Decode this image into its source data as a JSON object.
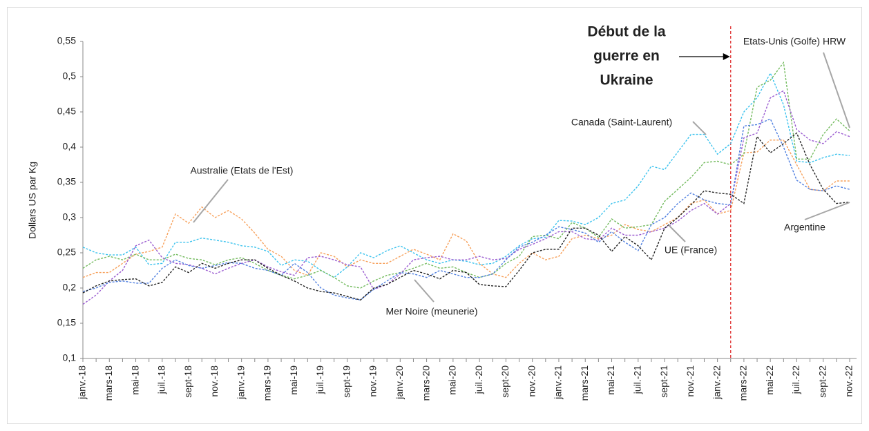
{
  "chart_data": {
    "type": "line",
    "y_label": "Dollars US par Kg",
    "event_text": [
      "Début de la",
      "guerre en",
      "Ukraine"
    ],
    "categories": [
      "janv.-18",
      null,
      "mars-18",
      null,
      "mai-18",
      null,
      "juil.-18",
      null,
      "sept-18",
      null,
      "nov.-18",
      null,
      "janv.-19",
      null,
      "mars-19",
      null,
      "mai-19",
      null,
      "juil.-19",
      null,
      "sept-19",
      null,
      "nov.-19",
      null,
      "janv.-20",
      null,
      "mars-20",
      null,
      "mai-20",
      null,
      "juil.-20",
      null,
      "sept-20",
      null,
      "nov.-20",
      null,
      "janv.-21",
      null,
      "mars-21",
      null,
      "mai-21",
      null,
      "juil.-21",
      null,
      "sept-21",
      null,
      "nov.-21",
      null,
      "janv.-22",
      null,
      "mars-22",
      null,
      "mai-22",
      null,
      "juil.-22",
      null,
      "sept-22",
      null,
      "nov.-22"
    ],
    "ylim": [
      0.1,
      0.55
    ],
    "yticks": [
      {
        "value": 0.1,
        "label": "0,1"
      },
      {
        "value": 0.15,
        "label": "0,15"
      },
      {
        "value": 0.2,
        "label": "0,2"
      },
      {
        "value": 0.25,
        "label": "0,25"
      },
      {
        "value": 0.3,
        "label": "0,3"
      },
      {
        "value": 0.35,
        "label": "0,35"
      },
      {
        "value": 0.4,
        "label": "0,4"
      },
      {
        "value": 0.45,
        "label": "0,45"
      },
      {
        "value": 0.5,
        "label": "0,5"
      },
      {
        "value": 0.55,
        "label": "0,55"
      }
    ],
    "grid": false,
    "series": [
      {
        "name": "Australie (Etats de l'Est)",
        "color": "#f7a05a",
        "values": [
          0.215,
          0.222,
          0.222,
          0.235,
          0.248,
          0.252,
          0.258,
          0.305,
          0.292,
          0.315,
          0.3,
          0.31,
          0.298,
          0.278,
          0.255,
          0.245,
          0.225,
          0.218,
          0.25,
          0.245,
          0.23,
          0.24,
          0.235,
          0.235,
          0.245,
          0.255,
          0.248,
          0.24,
          0.277,
          0.267,
          0.235,
          0.22,
          0.215,
          0.235,
          0.25,
          0.24,
          0.245,
          0.27,
          0.275,
          0.27,
          0.275,
          0.29,
          0.283,
          0.28,
          0.29,
          0.3,
          0.32,
          0.325,
          0.305,
          0.31,
          0.392,
          0.393,
          0.41,
          0.41,
          0.375,
          0.34,
          0.338,
          0.352,
          0.352
        ]
      },
      {
        "name": "Canada (Saint-Laurent)",
        "color": "#3cc3ee",
        "values": [
          0.258,
          0.25,
          0.247,
          0.247,
          0.258,
          0.233,
          0.235,
          0.265,
          0.265,
          0.271,
          0.268,
          0.265,
          0.26,
          0.258,
          0.252,
          0.232,
          0.24,
          0.238,
          0.225,
          0.215,
          0.23,
          0.25,
          0.243,
          0.253,
          0.26,
          0.25,
          0.24,
          0.235,
          0.24,
          0.238,
          0.233,
          0.235,
          0.245,
          0.26,
          0.27,
          0.272,
          0.296,
          0.295,
          0.29,
          0.3,
          0.32,
          0.325,
          0.345,
          0.373,
          0.368,
          0.393,
          0.418,
          0.418,
          0.39,
          0.405,
          0.45,
          0.47,
          0.505,
          0.46,
          0.38,
          0.378,
          0.385,
          0.39,
          0.388
        ]
      },
      {
        "name": "Etats-Unis (Golfe) HRW",
        "color": "#74bb5f",
        "values": [
          0.228,
          0.24,
          0.245,
          0.24,
          0.248,
          0.24,
          0.24,
          0.248,
          0.242,
          0.24,
          0.233,
          0.24,
          0.243,
          0.235,
          0.225,
          0.218,
          0.213,
          0.218,
          0.225,
          0.215,
          0.203,
          0.2,
          0.21,
          0.218,
          0.222,
          0.228,
          0.235,
          0.228,
          0.23,
          0.222,
          0.215,
          0.22,
          0.235,
          0.245,
          0.273,
          0.275,
          0.27,
          0.293,
          0.285,
          0.272,
          0.298,
          0.285,
          0.287,
          0.29,
          0.323,
          0.34,
          0.357,
          0.378,
          0.38,
          0.375,
          0.39,
          0.485,
          0.495,
          0.52,
          0.383,
          0.383,
          0.418,
          0.44,
          0.423
        ]
      },
      {
        "name": "Argentine",
        "color": "#9a5bd0",
        "values": [
          0.177,
          0.19,
          0.21,
          0.225,
          0.26,
          0.268,
          0.243,
          0.235,
          0.233,
          0.228,
          0.22,
          0.228,
          0.235,
          0.24,
          0.23,
          0.223,
          0.218,
          0.243,
          0.245,
          0.24,
          0.233,
          0.23,
          0.198,
          0.205,
          0.22,
          0.24,
          0.243,
          0.245,
          0.24,
          0.24,
          0.245,
          0.24,
          0.242,
          0.255,
          0.262,
          0.27,
          0.28,
          0.28,
          0.27,
          0.268,
          0.285,
          0.275,
          0.275,
          0.28,
          0.285,
          0.295,
          0.31,
          0.32,
          0.305,
          0.32,
          0.413,
          0.42,
          0.47,
          0.48,
          0.425,
          0.41,
          0.405,
          0.422,
          0.415
        ]
      },
      {
        "name": "UE (France)",
        "color": "#4f7fe0",
        "values": [
          0.195,
          0.2,
          0.208,
          0.21,
          0.207,
          0.207,
          0.228,
          0.24,
          0.232,
          0.228,
          0.232,
          0.236,
          0.235,
          0.228,
          0.225,
          0.218,
          0.235,
          0.222,
          0.2,
          0.19,
          0.186,
          0.183,
          0.198,
          0.21,
          0.222,
          0.22,
          0.215,
          0.225,
          0.22,
          0.215,
          0.215,
          0.22,
          0.24,
          0.258,
          0.265,
          0.275,
          0.287,
          0.283,
          0.278,
          0.265,
          0.28,
          0.265,
          0.253,
          0.29,
          0.3,
          0.32,
          0.335,
          0.325,
          0.32,
          0.318,
          0.43,
          0.432,
          0.44,
          0.4,
          0.353,
          0.34,
          0.338,
          0.345,
          0.34
        ]
      },
      {
        "name": "Mer Noire (meunerie)",
        "color": "#222222",
        "values": [
          0.193,
          0.203,
          0.21,
          0.212,
          0.213,
          0.203,
          0.208,
          0.23,
          0.222,
          0.235,
          0.228,
          0.235,
          0.24,
          0.24,
          0.228,
          0.218,
          0.21,
          0.2,
          0.195,
          0.193,
          0.188,
          0.183,
          0.2,
          0.205,
          0.215,
          0.225,
          0.22,
          0.213,
          0.225,
          0.222,
          0.205,
          0.203,
          0.202,
          0.225,
          0.25,
          0.255,
          0.255,
          0.285,
          0.285,
          0.275,
          0.252,
          0.273,
          0.26,
          0.24,
          0.285,
          0.3,
          0.318,
          0.338,
          0.335,
          0.333,
          0.32,
          0.415,
          0.392,
          0.405,
          0.42,
          0.375,
          0.34,
          0.32,
          0.322
        ]
      }
    ]
  }
}
